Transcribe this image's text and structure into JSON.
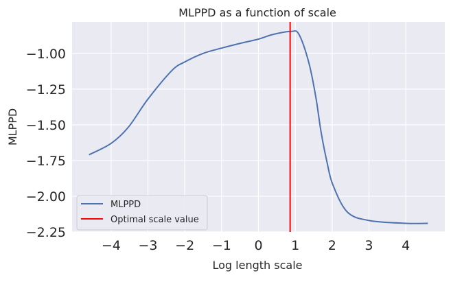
{
  "chart_data": {
    "type": "line",
    "title": "MLPPD as a function of scale",
    "xlabel": "Log length scale",
    "ylabel": "MLPPD",
    "xlim": [
      -5.06,
      5.06
    ],
    "ylim": [
      -2.25,
      -0.78
    ],
    "xticks": [
      "−4",
      "−3",
      "−2",
      "−1",
      "0",
      "1",
      "2",
      "3",
      "4"
    ],
    "xtick_values": [
      -4,
      -3,
      -2,
      -1,
      0,
      1,
      2,
      3,
      4
    ],
    "yticks": [
      "−1.00",
      "−1.25",
      "−1.50",
      "−1.75",
      "−2.00",
      "−2.25"
    ],
    "ytick_values": [
      -1.0,
      -1.25,
      -1.5,
      -1.75,
      -2.0,
      -2.25
    ],
    "grid": true,
    "legend_position": "lower-left",
    "background_color": "#EAEAF2",
    "series": [
      {
        "name": "MLPPD",
        "color": "#4C72B0",
        "x": [
          -4.6,
          -4.0,
          -3.53,
          -3.0,
          -2.35,
          -2.0,
          -1.5,
          -1.0,
          -0.5,
          0.0,
          0.4,
          0.88,
          1.1,
          1.37,
          1.56,
          1.7,
          1.86,
          2.02,
          2.41,
          3.0,
          4.0,
          4.6
        ],
        "y": [
          -1.71,
          -1.63,
          -1.516,
          -1.32,
          -1.12,
          -1.06,
          -1.0,
          -0.963,
          -0.93,
          -0.9,
          -0.867,
          -0.846,
          -0.867,
          -1.067,
          -1.31,
          -1.55,
          -1.76,
          -1.92,
          -2.11,
          -2.17,
          -2.19,
          -2.19
        ]
      }
    ],
    "vlines": [
      {
        "name": "Optimal scale value",
        "x": 0.86,
        "color": "#FF0000"
      }
    ]
  }
}
